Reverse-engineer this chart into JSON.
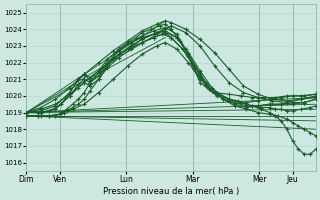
{
  "title": "",
  "xlabel": "Pression niveau de la mer( hPa )",
  "ylabel": "",
  "background_color": "#cce8e0",
  "grid_color": "#b0d4cc",
  "line_color": "#1a5c2a",
  "ylim": [
    1015.5,
    1025.5
  ],
  "yticks": [
    1016,
    1017,
    1018,
    1019,
    1020,
    1021,
    1022,
    1023,
    1024,
    1025
  ],
  "day_labels": [
    "Dim",
    "Ven",
    "Lun",
    "Mar",
    "Mer",
    "Jeu"
  ],
  "day_positions_norm": [
    0.0,
    0.115,
    0.345,
    0.575,
    0.805,
    0.92
  ],
  "num_points": 200,
  "straight_lines": [
    {
      "x": [
        0.0,
        0.48
      ],
      "y": [
        1019.0,
        1024.5
      ]
    },
    {
      "x": [
        0.0,
        0.48
      ],
      "y": [
        1019.0,
        1024.0
      ]
    },
    {
      "x": [
        0.0,
        0.48
      ],
      "y": [
        1019.0,
        1023.5
      ]
    },
    {
      "x": [
        0.0,
        1.0
      ],
      "y": [
        1019.0,
        1019.9
      ]
    },
    {
      "x": [
        0.0,
        1.0
      ],
      "y": [
        1019.0,
        1019.5
      ]
    },
    {
      "x": [
        0.0,
        1.0
      ],
      "y": [
        1019.0,
        1019.2
      ]
    },
    {
      "x": [
        0.0,
        1.0
      ],
      "y": [
        1018.8,
        1018.8
      ]
    },
    {
      "x": [
        0.0,
        1.0
      ],
      "y": [
        1018.8,
        1018.5
      ]
    },
    {
      "x": [
        0.0,
        1.0
      ],
      "y": [
        1018.8,
        1018.0
      ]
    }
  ],
  "ensemble_curves": [
    {
      "xn": [
        0.0,
        0.05,
        0.1,
        0.15,
        0.2,
        0.25,
        0.3,
        0.35,
        0.4,
        0.45,
        0.48,
        0.5,
        0.55,
        0.6,
        0.65,
        0.7,
        0.75,
        0.8,
        0.85,
        0.9,
        0.95,
        1.0
      ],
      "y": [
        1019.0,
        1019.3,
        1019.8,
        1020.5,
        1021.3,
        1022.0,
        1022.7,
        1023.3,
        1023.9,
        1024.3,
        1024.5,
        1024.4,
        1024.0,
        1023.4,
        1022.6,
        1021.6,
        1020.6,
        1020.1,
        1019.8,
        1019.7,
        1019.8,
        1019.9
      ]
    },
    {
      "xn": [
        0.0,
        0.05,
        0.1,
        0.15,
        0.2,
        0.25,
        0.3,
        0.35,
        0.4,
        0.45,
        0.48,
        0.5,
        0.55,
        0.6,
        0.65,
        0.7,
        0.75,
        0.8,
        0.85,
        0.9,
        0.95,
        1.0
      ],
      "y": [
        1019.0,
        1019.2,
        1019.5,
        1020.1,
        1020.8,
        1021.5,
        1022.2,
        1022.8,
        1023.4,
        1023.8,
        1024.0,
        1024.2,
        1023.8,
        1023.0,
        1021.8,
        1020.8,
        1020.2,
        1019.9,
        1019.7,
        1019.6,
        1019.8,
        1020.0
      ]
    },
    {
      "xn": [
        0.0,
        0.05,
        0.1,
        0.15,
        0.18,
        0.2,
        0.22,
        0.25,
        0.28,
        0.32,
        0.36,
        0.4,
        0.44,
        0.48,
        0.52,
        0.56,
        0.6,
        0.64,
        0.68,
        0.72,
        0.76,
        0.8,
        0.84,
        0.88,
        0.92,
        0.96,
        1.0
      ],
      "y": [
        1019.0,
        1019.1,
        1019.4,
        1020.2,
        1021.0,
        1021.3,
        1021.1,
        1021.5,
        1022.2,
        1022.8,
        1023.2,
        1023.5,
        1023.7,
        1023.9,
        1023.5,
        1022.5,
        1021.3,
        1020.3,
        1019.8,
        1019.5,
        1019.3,
        1019.4,
        1019.5,
        1019.5,
        1019.5,
        1019.6,
        1019.8
      ]
    },
    {
      "xn": [
        0.0,
        0.05,
        0.1,
        0.15,
        0.18,
        0.2,
        0.22,
        0.25,
        0.28,
        0.32,
        0.36,
        0.4,
        0.44,
        0.48,
        0.52,
        0.55,
        0.58,
        0.62,
        0.65,
        0.7,
        0.74,
        0.78,
        0.82,
        0.86,
        0.9,
        0.95,
        1.0
      ],
      "y": [
        1019.0,
        1019.0,
        1019.2,
        1020.0,
        1020.7,
        1021.0,
        1020.8,
        1021.2,
        1022.0,
        1022.7,
        1023.2,
        1023.6,
        1023.9,
        1024.1,
        1023.7,
        1022.8,
        1021.6,
        1020.6,
        1020.2,
        1020.1,
        1020.0,
        1019.9,
        1019.9,
        1019.9,
        1020.0,
        1020.0,
        1020.1
      ]
    },
    {
      "xn": [
        0.0,
        0.04,
        0.08,
        0.12,
        0.15,
        0.18,
        0.2,
        0.22,
        0.25,
        0.28,
        0.3,
        0.32,
        0.35,
        0.38,
        0.4,
        0.43,
        0.46,
        0.48,
        0.5,
        0.53,
        0.56,
        0.6,
        0.64,
        0.68,
        0.72,
        0.76,
        0.8,
        0.84,
        0.88,
        0.92,
        0.96,
        1.0
      ],
      "y": [
        1019.0,
        1019.0,
        1019.1,
        1019.5,
        1020.2,
        1021.0,
        1021.3,
        1020.9,
        1021.2,
        1021.8,
        1022.3,
        1022.8,
        1023.2,
        1023.5,
        1023.8,
        1024.0,
        1024.2,
        1024.3,
        1024.0,
        1023.3,
        1022.4,
        1021.2,
        1020.3,
        1019.8,
        1019.6,
        1019.4,
        1019.4,
        1019.5,
        1019.5,
        1019.6,
        1019.6,
        1019.8
      ]
    },
    {
      "xn": [
        0.0,
        0.05,
        0.1,
        0.15,
        0.18,
        0.2,
        0.22,
        0.25,
        0.28,
        0.32,
        0.36,
        0.4,
        0.44,
        0.47,
        0.5,
        0.54,
        0.57,
        0.6,
        0.63,
        0.66,
        0.7,
        0.73,
        0.76,
        0.8,
        0.84,
        0.88,
        0.92,
        0.96,
        1.0
      ],
      "y": [
        1019.0,
        1019.0,
        1019.2,
        1020.0,
        1020.5,
        1020.8,
        1020.6,
        1021.0,
        1021.8,
        1022.5,
        1023.0,
        1023.4,
        1023.7,
        1023.9,
        1023.5,
        1022.8,
        1022.0,
        1020.8,
        1020.4,
        1020.0,
        1019.8,
        1019.7,
        1019.6,
        1019.7,
        1019.8,
        1019.9,
        1020.0,
        1020.0,
        1020.1
      ]
    },
    {
      "xn": [
        0.0,
        0.04,
        0.08,
        0.115,
        0.14,
        0.16,
        0.18,
        0.2,
        0.22,
        0.25,
        0.28,
        0.32,
        0.36,
        0.4,
        0.44,
        0.47,
        0.5,
        0.54,
        0.58,
        0.62,
        0.66,
        0.7,
        0.74,
        0.78,
        0.81,
        0.84,
        0.86,
        0.88,
        0.9,
        0.92,
        0.95,
        0.98,
        1.0
      ],
      "y": [
        1018.8,
        1018.8,
        1018.8,
        1018.9,
        1019.2,
        1019.5,
        1019.8,
        1020.2,
        1020.8,
        1021.4,
        1022.0,
        1022.5,
        1022.9,
        1023.2,
        1023.5,
        1023.7,
        1023.5,
        1022.8,
        1021.8,
        1020.8,
        1020.2,
        1019.8,
        1019.6,
        1019.4,
        1019.3,
        1019.3,
        1019.2,
        1019.2,
        1019.1,
        1019.1,
        1019.2,
        1019.3,
        1019.4
      ]
    },
    {
      "xn": [
        0.0,
        0.04,
        0.08,
        0.115,
        0.14,
        0.16,
        0.18,
        0.2,
        0.22,
        0.25,
        0.28,
        0.32,
        0.36,
        0.4,
        0.44,
        0.48,
        0.52,
        0.56,
        0.6,
        0.64,
        0.68,
        0.72,
        0.76,
        0.8,
        0.84,
        0.87,
        0.9,
        0.92,
        0.94,
        0.96,
        0.98,
        1.0
      ],
      "y": [
        1018.8,
        1018.8,
        1018.8,
        1018.9,
        1019.1,
        1019.3,
        1019.5,
        1019.8,
        1020.3,
        1021.0,
        1021.7,
        1022.3,
        1022.8,
        1023.2,
        1023.5,
        1023.8,
        1023.5,
        1022.6,
        1021.5,
        1020.5,
        1019.8,
        1019.4,
        1019.2,
        1019.0,
        1018.9,
        1018.8,
        1018.6,
        1018.4,
        1018.2,
        1018.0,
        1017.8,
        1017.6
      ]
    },
    {
      "xn": [
        0.0,
        0.05,
        0.1,
        0.115,
        0.13,
        0.16,
        0.2,
        0.25,
        0.3,
        0.35,
        0.4,
        0.45,
        0.48,
        0.52,
        0.56,
        0.6,
        0.65,
        0.7,
        0.74,
        0.78,
        0.81,
        0.84,
        0.86,
        0.88,
        0.9,
        0.92,
        0.94,
        0.96,
        0.98,
        1.0
      ],
      "y": [
        1018.8,
        1018.8,
        1018.8,
        1018.9,
        1019.0,
        1019.2,
        1019.5,
        1020.2,
        1021.0,
        1021.8,
        1022.5,
        1023.0,
        1023.2,
        1022.8,
        1022.0,
        1021.0,
        1020.2,
        1019.8,
        1019.6,
        1019.4,
        1019.2,
        1019.0,
        1018.8,
        1018.5,
        1018.0,
        1017.3,
        1016.8,
        1016.5,
        1016.5,
        1016.8
      ]
    }
  ]
}
